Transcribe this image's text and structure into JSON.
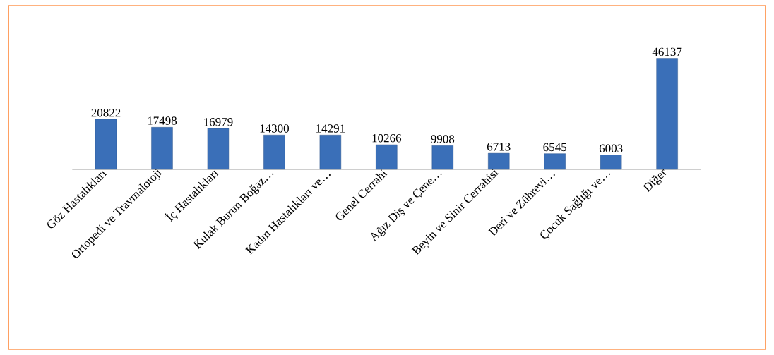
{
  "chart_data": {
    "type": "bar",
    "categories": [
      "Göz Hastalıkları",
      "Ortopedi ve Travmalotoji",
      "İç Hastalıkları",
      "Kulak Burun Boğaz…",
      "Kadın Hastalıkları ve…",
      "Genel Cerrahi",
      "Ağız Diş ve Çene…",
      "Beyin ve Sinir Cerrahisi",
      "Deri ve Zührevi…",
      "Çocuk Sağlığı ve…",
      "Diğer"
    ],
    "values": [
      20822,
      17498,
      16979,
      14300,
      14291,
      10266,
      9908,
      6713,
      6545,
      6003,
      46137
    ],
    "color": "#3a6fb8",
    "data_labels": true
  }
}
